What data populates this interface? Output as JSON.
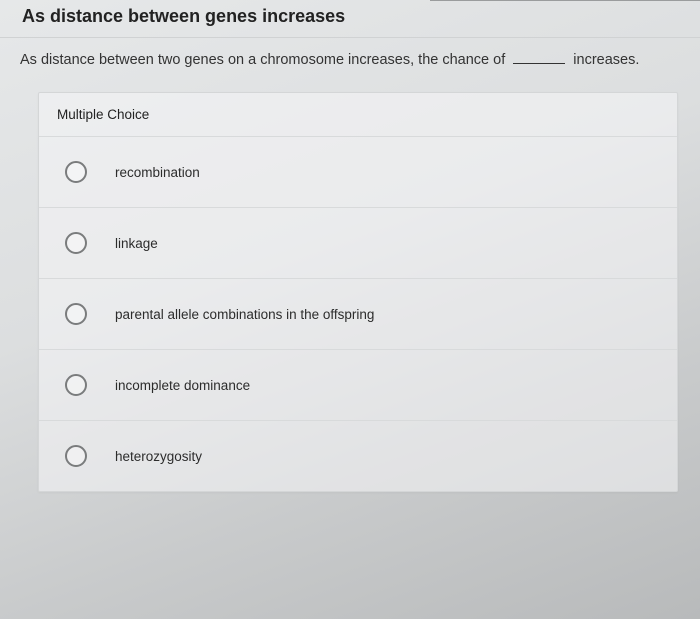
{
  "title": "As distance between genes increases",
  "question_prefix": "As distance between two genes on a chromosome increases, the chance of",
  "question_suffix": "increases.",
  "mc_label": "Multiple Choice",
  "options": [
    {
      "label": "recombination"
    },
    {
      "label": "linkage"
    },
    {
      "label": "parental allele combinations in the offspring"
    },
    {
      "label": "incomplete dominance"
    },
    {
      "label": "heterozygosity"
    }
  ],
  "colors": {
    "text": "#2b2b2b",
    "border": "#d4d6d7",
    "radio_border": "#7a7c7d"
  }
}
